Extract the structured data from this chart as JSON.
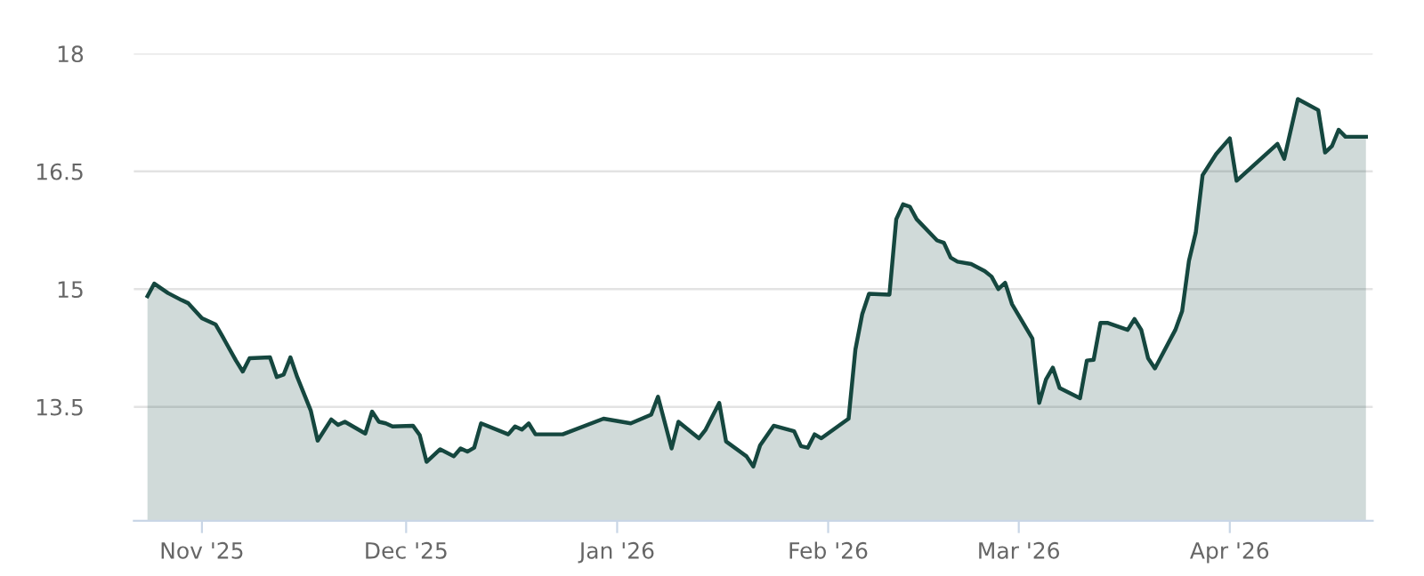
{
  "chart_data": {
    "type": "area",
    "x": [
      "2025-10-24",
      "2025-10-25",
      "2025-10-27",
      "2025-10-29",
      "2025-10-30",
      "2025-11-01",
      "2025-11-03",
      "2025-11-04",
      "2025-11-06",
      "2025-11-07",
      "2025-11-08",
      "2025-11-11",
      "2025-11-12",
      "2025-11-13",
      "2025-11-14",
      "2025-11-15",
      "2025-11-17",
      "2025-11-18",
      "2025-11-20",
      "2025-11-21",
      "2025-11-22",
      "2025-11-25",
      "2025-11-26",
      "2025-11-27",
      "2025-11-28",
      "2025-11-29",
      "2025-12-02",
      "2025-12-03",
      "2025-12-04",
      "2025-12-06",
      "2025-12-08",
      "2025-12-09",
      "2025-12-10",
      "2025-12-11",
      "2025-12-12",
      "2025-12-16",
      "2025-12-17",
      "2025-12-18",
      "2025-12-19",
      "2025-12-20",
      "2025-12-24",
      "2025-12-30",
      "2026-01-03",
      "2026-01-06",
      "2026-01-07",
      "2026-01-09",
      "2026-01-10",
      "2026-01-13",
      "2026-01-14",
      "2026-01-16",
      "2026-01-17",
      "2026-01-20",
      "2026-01-21",
      "2026-01-22",
      "2026-01-24",
      "2026-01-27",
      "2026-01-28",
      "2026-01-29",
      "2026-01-30",
      "2026-01-31",
      "2026-02-04",
      "2026-02-05",
      "2026-02-06",
      "2026-02-07",
      "2026-02-10",
      "2026-02-11",
      "2026-02-12",
      "2026-02-13",
      "2026-02-14",
      "2026-02-17",
      "2026-02-18",
      "2026-02-19",
      "2026-02-20",
      "2026-02-22",
      "2026-02-24",
      "2026-02-25",
      "2026-02-26",
      "2026-02-27",
      "2026-02-28",
      "2026-03-03",
      "2026-03-04",
      "2026-03-05",
      "2026-03-06",
      "2026-03-07",
      "2026-03-10",
      "2026-03-11",
      "2026-03-12",
      "2026-03-13",
      "2026-03-14",
      "2026-03-17",
      "2026-03-18",
      "2026-03-19",
      "2026-03-20",
      "2026-03-21",
      "2026-03-24",
      "2026-03-25",
      "2026-03-26",
      "2026-03-27",
      "2026-03-28",
      "2026-03-30",
      "2026-04-01",
      "2026-04-02",
      "2026-04-08",
      "2026-04-09",
      "2026-04-11",
      "2026-04-14",
      "2026-04-15",
      "2026-04-16",
      "2026-04-17",
      "2026-04-18",
      "2026-04-21"
    ],
    "series": [
      {
        "color": "#15473f",
        "values": [
          14.91,
          15.07,
          14.95,
          14.86,
          14.82,
          14.63,
          14.55,
          14.4,
          14.09,
          13.95,
          14.12,
          14.13,
          13.88,
          13.91,
          14.13,
          13.88,
          13.45,
          13.07,
          13.34,
          13.27,
          13.31,
          13.16,
          13.44,
          13.31,
          13.29,
          13.25,
          13.26,
          13.14,
          12.8,
          12.96,
          12.87,
          12.97,
          12.93,
          12.98,
          13.29,
          13.15,
          13.25,
          13.21,
          13.29,
          13.15,
          13.15,
          13.35,
          13.29,
          13.4,
          13.63,
          12.97,
          13.31,
          13.1,
          13.21,
          13.55,
          13.06,
          12.87,
          12.74,
          13.01,
          13.26,
          13.19,
          13.0,
          12.98,
          13.15,
          13.1,
          13.35,
          14.23,
          14.68,
          14.94,
          14.93,
          15.89,
          16.08,
          16.05,
          15.89,
          15.62,
          15.59,
          15.4,
          15.35,
          15.32,
          15.23,
          15.16,
          15.0,
          15.08,
          14.81,
          14.37,
          13.55,
          13.85,
          14.0,
          13.74,
          13.61,
          14.09,
          14.1,
          14.57,
          14.57,
          14.48,
          14.62,
          14.48,
          14.12,
          13.99,
          14.48,
          14.72,
          15.36,
          15.72,
          16.45,
          16.72,
          16.92,
          16.38,
          16.85,
          16.66,
          17.42,
          17.28,
          16.74,
          16.82,
          17.03,
          16.94,
          16.94
        ]
      }
    ],
    "xlim": [
      "2025-10-22",
      "2026-04-22"
    ],
    "xticks": [
      {
        "value": "2025-11-01",
        "label": "Nov '25"
      },
      {
        "value": "2025-12-01",
        "label": "Dec '25"
      },
      {
        "value": "2026-01-01",
        "label": "Jan '26"
      },
      {
        "value": "2026-02-01",
        "label": "Feb '26"
      },
      {
        "value": "2026-03-01",
        "label": "Mar '26"
      },
      {
        "value": "2026-04-01",
        "label": "Apr '26"
      }
    ],
    "ylim": [
      12.05,
      18
    ],
    "yticks": [
      13.5,
      15,
      16.5,
      18
    ],
    "grid": "y"
  }
}
